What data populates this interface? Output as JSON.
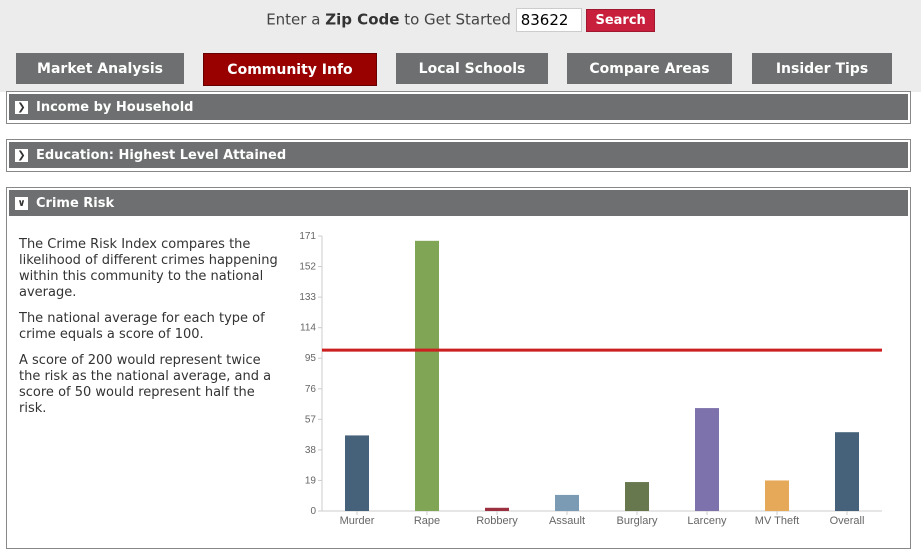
{
  "header": {
    "prompt_pre": "Enter a",
    "prompt_bold": "Zip Code",
    "prompt_post": "to Get Started",
    "zip_value": "83622",
    "search_label": "Search"
  },
  "tabs": [
    {
      "label": "Market Analysis"
    },
    {
      "label": "Community Info",
      "active": true
    },
    {
      "label": "Local Schools"
    },
    {
      "label": "Compare Areas"
    },
    {
      "label": "Insider Tips"
    }
  ],
  "panels": [
    {
      "title": "Income by Household",
      "state": "collapsed"
    },
    {
      "title": "Education: Highest Level Attained",
      "state": "collapsed"
    },
    {
      "title": "Crime Risk",
      "state": "expanded"
    }
  ],
  "crime": {
    "paragraphs": [
      "The Crime Risk Index compares the likelihood of different crimes happening within this community to the national average.",
      "The national average for each type of crime equals a score of 100.",
      "A score of 200 would represent twice the risk as the national average, and a score of 50 would represent half the risk."
    ]
  },
  "colors": {
    "tab": "#6d6f70",
    "active_tab": "#990000",
    "search": "#c8203c",
    "reference_line": "#cc1f1f"
  },
  "chart_data": {
    "type": "bar",
    "categories": [
      "Murder",
      "Rape",
      "Robbery",
      "Assault",
      "Burglary",
      "Larceny",
      "MV Theft",
      "Overall"
    ],
    "values": [
      47,
      168,
      2,
      10,
      18,
      64,
      19,
      49
    ],
    "colors": [
      "#46627a",
      "#80a554",
      "#9a3040",
      "#7b9bb4",
      "#67784e",
      "#7e72ac",
      "#e6a95a",
      "#46627a"
    ],
    "yticks": [
      0,
      19,
      38,
      57,
      76,
      95,
      114,
      133,
      152,
      171
    ],
    "ylim": [
      0,
      171
    ],
    "reference_line": 100,
    "grid": false
  }
}
